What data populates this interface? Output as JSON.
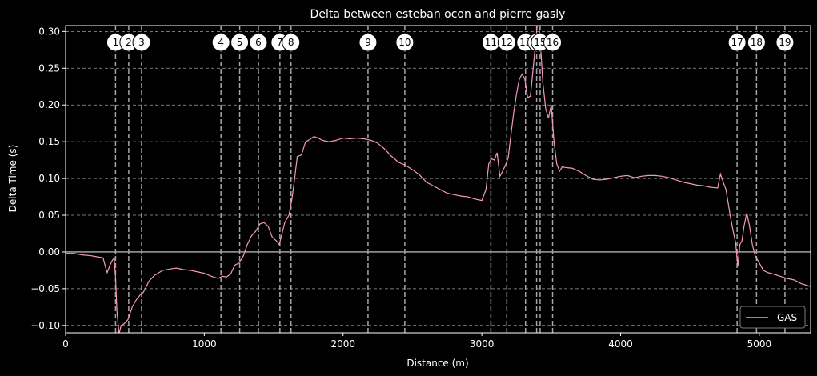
{
  "chart_data": {
    "type": "line",
    "title": "Delta between esteban ocon and pierre gasly",
    "xlabel": "Distance (m)",
    "ylabel": "Delta Time (s)",
    "xlim": [
      0,
      5370
    ],
    "ylim": [
      -0.11,
      0.308
    ],
    "x_ticks": [
      0,
      1000,
      2000,
      3000,
      4000,
      5000
    ],
    "y_ticks": [
      -0.1,
      -0.05,
      0.0,
      0.05,
      0.1,
      0.15,
      0.2,
      0.25,
      0.3
    ],
    "y_tick_labels": [
      "−0.10",
      "−0.05",
      "0.00",
      "0.05",
      "0.10",
      "0.15",
      "0.20",
      "0.25",
      "0.30"
    ],
    "grid": "y-dashed",
    "legend_position": "bottom-right",
    "colors": {
      "background": "#000000",
      "series": "#f797c4",
      "corner_line": "#a6a6a6",
      "grid": "#a0a0a0"
    },
    "series": [
      {
        "name": "GAS",
        "points": [
          [
            0,
            -0.002
          ],
          [
            60,
            -0.002
          ],
          [
            120,
            -0.004
          ],
          [
            180,
            -0.005
          ],
          [
            240,
            -0.007
          ],
          [
            270,
            -0.008
          ],
          [
            290,
            -0.022
          ],
          [
            300,
            -0.028
          ],
          [
            320,
            -0.018
          ],
          [
            335,
            -0.012
          ],
          [
            350,
            -0.008
          ],
          [
            360,
            -0.035
          ],
          [
            370,
            -0.08
          ],
          [
            385,
            -0.112
          ],
          [
            400,
            -0.1
          ],
          [
            420,
            -0.098
          ],
          [
            450,
            -0.092
          ],
          [
            480,
            -0.075
          ],
          [
            510,
            -0.065
          ],
          [
            540,
            -0.058
          ],
          [
            560,
            -0.055
          ],
          [
            580,
            -0.048
          ],
          [
            600,
            -0.04
          ],
          [
            640,
            -0.032
          ],
          [
            700,
            -0.025
          ],
          [
            760,
            -0.023
          ],
          [
            800,
            -0.022
          ],
          [
            850,
            -0.024
          ],
          [
            900,
            -0.025
          ],
          [
            950,
            -0.027
          ],
          [
            1000,
            -0.029
          ],
          [
            1050,
            -0.033
          ],
          [
            1100,
            -0.036
          ],
          [
            1130,
            -0.033
          ],
          [
            1160,
            -0.034
          ],
          [
            1190,
            -0.03
          ],
          [
            1220,
            -0.018
          ],
          [
            1250,
            -0.015
          ],
          [
            1280,
            -0.006
          ],
          [
            1310,
            0.01
          ],
          [
            1340,
            0.022
          ],
          [
            1370,
            0.028
          ],
          [
            1400,
            0.038
          ],
          [
            1430,
            0.04
          ],
          [
            1460,
            0.035
          ],
          [
            1490,
            0.02
          ],
          [
            1520,
            0.015
          ],
          [
            1540,
            0.01
          ],
          [
            1560,
            0.025
          ],
          [
            1580,
            0.04
          ],
          [
            1610,
            0.05
          ],
          [
            1630,
            0.07
          ],
          [
            1650,
            0.098
          ],
          [
            1670,
            0.13
          ],
          [
            1700,
            0.132
          ],
          [
            1730,
            0.15
          ],
          [
            1760,
            0.153
          ],
          [
            1790,
            0.157
          ],
          [
            1820,
            0.155
          ],
          [
            1850,
            0.152
          ],
          [
            1900,
            0.15
          ],
          [
            1950,
            0.152
          ],
          [
            2000,
            0.155
          ],
          [
            2050,
            0.154
          ],
          [
            2100,
            0.155
          ],
          [
            2150,
            0.154
          ],
          [
            2200,
            0.152
          ],
          [
            2250,
            0.148
          ],
          [
            2300,
            0.14
          ],
          [
            2350,
            0.13
          ],
          [
            2400,
            0.122
          ],
          [
            2450,
            0.118
          ],
          [
            2500,
            0.112
          ],
          [
            2550,
            0.105
          ],
          [
            2600,
            0.095
          ],
          [
            2650,
            0.09
          ],
          [
            2700,
            0.085
          ],
          [
            2750,
            0.08
          ],
          [
            2800,
            0.078
          ],
          [
            2850,
            0.076
          ],
          [
            2900,
            0.075
          ],
          [
            2950,
            0.072
          ],
          [
            3000,
            0.07
          ],
          [
            3030,
            0.085
          ],
          [
            3050,
            0.12
          ],
          [
            3070,
            0.127
          ],
          [
            3090,
            0.125
          ],
          [
            3110,
            0.135
          ],
          [
            3130,
            0.103
          ],
          [
            3150,
            0.11
          ],
          [
            3170,
            0.118
          ],
          [
            3190,
            0.128
          ],
          [
            3210,
            0.16
          ],
          [
            3230,
            0.19
          ],
          [
            3250,
            0.215
          ],
          [
            3270,
            0.235
          ],
          [
            3290,
            0.242
          ],
          [
            3310,
            0.235
          ],
          [
            3330,
            0.21
          ],
          [
            3350,
            0.212
          ],
          [
            3370,
            0.25
          ],
          [
            3390,
            0.29
          ],
          [
            3405,
            0.32
          ],
          [
            3420,
            0.29
          ],
          [
            3440,
            0.23
          ],
          [
            3460,
            0.195
          ],
          [
            3480,
            0.182
          ],
          [
            3500,
            0.2
          ],
          [
            3520,
            0.15
          ],
          [
            3540,
            0.12
          ],
          [
            3560,
            0.11
          ],
          [
            3580,
            0.116
          ],
          [
            3600,
            0.115
          ],
          [
            3650,
            0.114
          ],
          [
            3700,
            0.11
          ],
          [
            3750,
            0.104
          ],
          [
            3800,
            0.099
          ],
          [
            3850,
            0.098
          ],
          [
            3900,
            0.099
          ],
          [
            3950,
            0.101
          ],
          [
            4000,
            0.103
          ],
          [
            4050,
            0.104
          ],
          [
            4100,
            0.101
          ],
          [
            4150,
            0.103
          ],
          [
            4200,
            0.104
          ],
          [
            4250,
            0.104
          ],
          [
            4300,
            0.103
          ],
          [
            4350,
            0.101
          ],
          [
            4400,
            0.098
          ],
          [
            4450,
            0.095
          ],
          [
            4500,
            0.093
          ],
          [
            4550,
            0.091
          ],
          [
            4600,
            0.09
          ],
          [
            4650,
            0.088
          ],
          [
            4700,
            0.087
          ],
          [
            4720,
            0.106
          ],
          [
            4740,
            0.095
          ],
          [
            4760,
            0.085
          ],
          [
            4790,
            0.05
          ],
          [
            4810,
            0.03
          ],
          [
            4830,
            0.012
          ],
          [
            4845,
            -0.02
          ],
          [
            4860,
            0.01
          ],
          [
            4875,
            0.015
          ],
          [
            4890,
            0.035
          ],
          [
            4910,
            0.053
          ],
          [
            4930,
            0.035
          ],
          [
            4950,
            0.01
          ],
          [
            4970,
            -0.005
          ],
          [
            5000,
            -0.015
          ],
          [
            5030,
            -0.025
          ],
          [
            5060,
            -0.028
          ],
          [
            5100,
            -0.03
          ],
          [
            5150,
            -0.033
          ],
          [
            5200,
            -0.036
          ],
          [
            5250,
            -0.038
          ],
          [
            5300,
            -0.043
          ],
          [
            5370,
            -0.047
          ]
        ]
      }
    ],
    "corners": [
      {
        "label": "1",
        "x": 360
      },
      {
        "label": "2",
        "x": 455
      },
      {
        "label": "3",
        "x": 548
      },
      {
        "label": "4",
        "x": 1120
      },
      {
        "label": "5",
        "x": 1255
      },
      {
        "label": "6",
        "x": 1390
      },
      {
        "label": "7",
        "x": 1545
      },
      {
        "label": "8",
        "x": 1625
      },
      {
        "label": "9",
        "x": 2180
      },
      {
        "label": "10",
        "x": 2445
      },
      {
        "label": "11",
        "x": 3065
      },
      {
        "label": "12",
        "x": 3180
      },
      {
        "label": "13",
        "x": 3315
      },
      {
        "label": "14",
        "x": 3395
      },
      {
        "label": "15",
        "x": 3420
      },
      {
        "label": "16",
        "x": 3510
      },
      {
        "label": "17",
        "x": 4840
      },
      {
        "label": "18",
        "x": 4980
      },
      {
        "label": "19",
        "x": 5185
      }
    ]
  }
}
